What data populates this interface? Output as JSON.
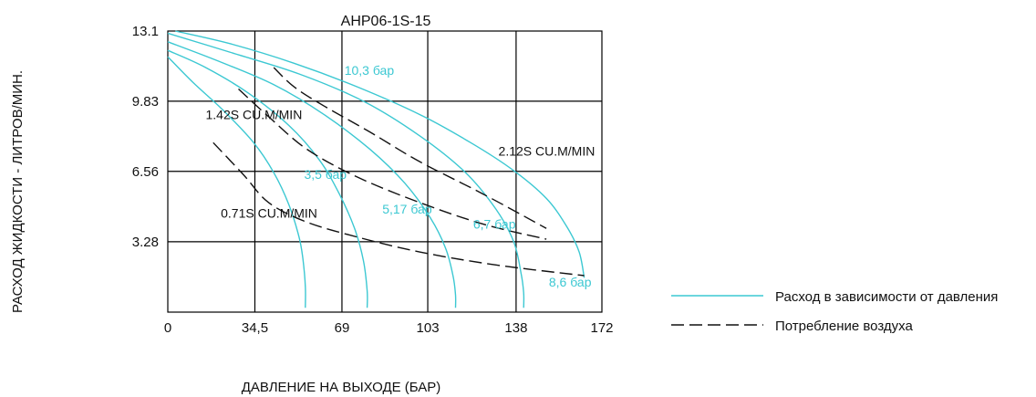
{
  "chart_data": {
    "type": "line",
    "title": "AHP06-1S-15",
    "xlabel": "ДАВЛЕНИЕ НА ВЫХОДЕ (БАР)",
    "ylabel": "РАСХОД ЖИДКОСТИ - ЛИТРОВ/МИН.",
    "xlim": [
      0,
      172
    ],
    "ylim": [
      0,
      13.1
    ],
    "x_ticks": [
      0,
      34.5,
      69,
      103,
      138,
      172
    ],
    "x_tick_labels": [
      "0",
      "34,5",
      "69",
      "103",
      "138",
      "172"
    ],
    "y_ticks": [
      3.28,
      6.56,
      9.83,
      13.1
    ],
    "y_tick_labels": [
      "3.28",
      "6.56",
      "9.83",
      "13.1"
    ],
    "grid": true,
    "colors": {
      "flow": "#3cc8d2",
      "air": "#111111",
      "grid": "#000000"
    },
    "legend": {
      "position": "right",
      "entries": [
        {
          "label": "Расход в зависимости от давления",
          "style": "solid",
          "color": "#3cc8d2"
        },
        {
          "label": "Потребление воздуха",
          "style": "dashed",
          "color": "#111111"
        }
      ]
    },
    "series": [
      {
        "name": "3,5 бар",
        "group": "flow",
        "x": [
          0,
          10,
          22,
          34,
          42,
          48,
          52,
          53.5,
          54.5,
          54.5
        ],
        "y": [
          11.9,
          10.7,
          9.4,
          7.9,
          6.5,
          5.0,
          3.5,
          2.5,
          1.2,
          0.2
        ],
        "label_x": 54,
        "label_y": 6.2
      },
      {
        "name": "5,17 бар",
        "group": "flow",
        "x": [
          0,
          15,
          32,
          48,
          60,
          68,
          74,
          77.5,
          79,
          79
        ],
        "y": [
          12.2,
          11.4,
          10.2,
          8.7,
          7.1,
          5.5,
          3.9,
          2.4,
          1.0,
          0.2
        ],
        "label_x": 85,
        "label_y": 4.6
      },
      {
        "name": "6,7 бар",
        "group": "flow",
        "x": [
          0,
          20,
          42,
          62,
          80,
          94,
          104,
          110,
          113,
          114,
          114
        ],
        "y": [
          12.6,
          11.7,
          10.6,
          9.2,
          7.6,
          6.0,
          4.4,
          3.0,
          1.7,
          0.8,
          0.2
        ],
        "label_x": 121,
        "label_y": 3.9
      },
      {
        "name": "8,6 бар",
        "group": "flow",
        "x": [
          0,
          25,
          52,
          78,
          100,
          118,
          130,
          137,
          140,
          141,
          141
        ],
        "y": [
          13.0,
          12.1,
          11.1,
          9.8,
          8.2,
          6.5,
          4.8,
          3.3,
          1.8,
          0.9,
          0.2
        ],
        "label_x": 151,
        "label_y": 1.2
      },
      {
        "name": "10,3 бар",
        "group": "flow",
        "x": [
          3,
          25,
          50,
          75,
          100,
          120,
          137,
          150,
          158,
          163,
          165
        ],
        "y": [
          13.1,
          12.5,
          11.6,
          10.5,
          9.2,
          7.9,
          6.6,
          5.3,
          4.0,
          2.8,
          1.6
        ],
        "label_x": 70,
        "label_y": 11.05
      },
      {
        "name": "2.12S CU.M/MIN",
        "group": "air",
        "x": [
          42,
          50,
          62,
          80,
          100,
          125,
          150
        ],
        "y": [
          11.4,
          10.5,
          9.6,
          8.4,
          7.0,
          5.5,
          3.9
        ],
        "label_x": 131,
        "label_y": 7.3
      },
      {
        "name": "1.42S CU.M/MIN",
        "group": "air",
        "x": [
          28,
          40,
          55,
          75,
          100,
          125,
          150
        ],
        "y": [
          10.4,
          9.1,
          7.6,
          6.3,
          5.1,
          4.1,
          3.4
        ],
        "label_x": 15,
        "label_y": 9.0
      },
      {
        "name": "0.71S CU.M/MIN",
        "group": "air",
        "x": [
          18,
          30,
          40,
          55,
          75,
          100,
          130,
          165
        ],
        "y": [
          7.9,
          6.4,
          5.1,
          4.2,
          3.5,
          2.8,
          2.2,
          1.7
        ],
        "label_x": 21,
        "label_y": 4.4
      }
    ]
  }
}
